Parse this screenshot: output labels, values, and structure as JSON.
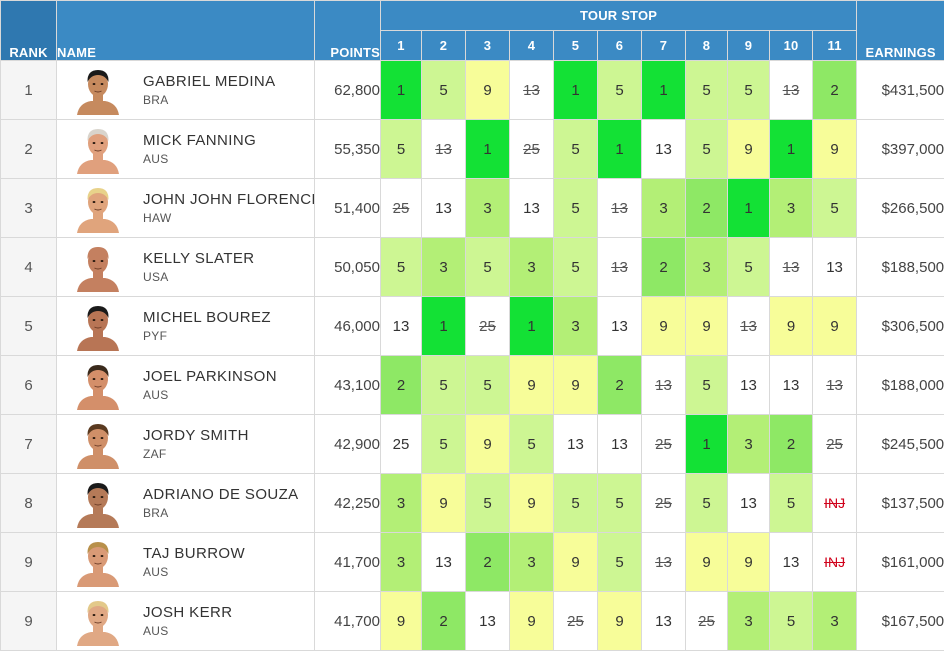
{
  "headers": {
    "rank": "RANK",
    "name": "NAME",
    "points": "POINTS",
    "tour_stop": "TOUR STOP",
    "earnings": "EARNINGS",
    "stops": [
      "1",
      "2",
      "3",
      "4",
      "5",
      "6",
      "7",
      "8",
      "9",
      "10",
      "11"
    ]
  },
  "colors": {
    "header_bg": "#3b8ac4",
    "result_1": "#13e135",
    "result_2": "#8ee865",
    "result_3": "#b3ef76",
    "result_5": "#cdf693",
    "result_9": "#f7fd99",
    "injury_text": "#d0021b"
  },
  "rows": [
    {
      "rank": "1",
      "name": "GABRIEL MEDINA",
      "country": "BRA",
      "points": "62,800",
      "earnings": "$431,500",
      "skin": "#c68a5e",
      "hair": "#1a1a1a",
      "results": [
        {
          "v": "1",
          "c": "c1"
        },
        {
          "v": "5",
          "c": "c5"
        },
        {
          "v": "9",
          "c": "c9"
        },
        {
          "v": "13",
          "c": "cw",
          "s": true
        },
        {
          "v": "1",
          "c": "c1"
        },
        {
          "v": "5",
          "c": "c5"
        },
        {
          "v": "1",
          "c": "c1"
        },
        {
          "v": "5",
          "c": "c5"
        },
        {
          "v": "5",
          "c": "c5"
        },
        {
          "v": "13",
          "c": "cw",
          "s": true
        },
        {
          "v": "2",
          "c": "c2"
        }
      ]
    },
    {
      "rank": "2",
      "name": "MICK FANNING",
      "country": "AUS",
      "points": "55,350",
      "earnings": "$397,000",
      "skin": "#e0a07d",
      "hair": "#d9d4cc",
      "results": [
        {
          "v": "5",
          "c": "c5"
        },
        {
          "v": "13",
          "c": "cw",
          "s": true
        },
        {
          "v": "1",
          "c": "c1"
        },
        {
          "v": "25",
          "c": "cw",
          "s": true
        },
        {
          "v": "5",
          "c": "c5"
        },
        {
          "v": "1",
          "c": "c1"
        },
        {
          "v": "13",
          "c": "cw"
        },
        {
          "v": "5",
          "c": "c5"
        },
        {
          "v": "9",
          "c": "c9"
        },
        {
          "v": "1",
          "c": "c1"
        },
        {
          "v": "9",
          "c": "c9"
        }
      ]
    },
    {
      "rank": "3",
      "name": "JOHN JOHN FLORENCE",
      "country": "HAW",
      "points": "51,400",
      "earnings": "$266,500",
      "skin": "#e0a47c",
      "hair": "#e8d28a",
      "results": [
        {
          "v": "25",
          "c": "cw",
          "s": true
        },
        {
          "v": "13",
          "c": "cw"
        },
        {
          "v": "3",
          "c": "c3"
        },
        {
          "v": "13",
          "c": "cw"
        },
        {
          "v": "5",
          "c": "c5"
        },
        {
          "v": "13",
          "c": "cw",
          "s": true
        },
        {
          "v": "3",
          "c": "c3"
        },
        {
          "v": "2",
          "c": "c2"
        },
        {
          "v": "1",
          "c": "c1"
        },
        {
          "v": "3",
          "c": "c3"
        },
        {
          "v": "5",
          "c": "c5"
        }
      ]
    },
    {
      "rank": "4",
      "name": "KELLY SLATER",
      "country": "USA",
      "points": "50,050",
      "earnings": "$188,500",
      "skin": "#c48060",
      "hair": "#c48060",
      "results": [
        {
          "v": "5",
          "c": "c5"
        },
        {
          "v": "3",
          "c": "c3"
        },
        {
          "v": "5",
          "c": "c5"
        },
        {
          "v": "3",
          "c": "c3"
        },
        {
          "v": "5",
          "c": "c5"
        },
        {
          "v": "13",
          "c": "cw",
          "s": true
        },
        {
          "v": "2",
          "c": "c2"
        },
        {
          "v": "3",
          "c": "c3"
        },
        {
          "v": "5",
          "c": "c5"
        },
        {
          "v": "13",
          "c": "cw",
          "s": true
        },
        {
          "v": "13",
          "c": "cw"
        }
      ]
    },
    {
      "rank": "5",
      "name": "MICHEL BOUREZ",
      "country": "PYF",
      "points": "46,000",
      "earnings": "$306,500",
      "skin": "#b87555",
      "hair": "#1a1a1a",
      "results": [
        {
          "v": "13",
          "c": "cw"
        },
        {
          "v": "1",
          "c": "c1"
        },
        {
          "v": "25",
          "c": "cw",
          "s": true
        },
        {
          "v": "1",
          "c": "c1"
        },
        {
          "v": "3",
          "c": "c3"
        },
        {
          "v": "13",
          "c": "cw"
        },
        {
          "v": "9",
          "c": "c9"
        },
        {
          "v": "9",
          "c": "c9"
        },
        {
          "v": "13",
          "c": "cw",
          "s": true
        },
        {
          "v": "9",
          "c": "c9"
        },
        {
          "v": "9",
          "c": "c9"
        }
      ]
    },
    {
      "rank": "6",
      "name": "JOEL PARKINSON",
      "country": "AUS",
      "points": "43,100",
      "earnings": "$188,000",
      "skin": "#d48f6a",
      "hair": "#3a2a1c",
      "results": [
        {
          "v": "2",
          "c": "c2"
        },
        {
          "v": "5",
          "c": "c5"
        },
        {
          "v": "5",
          "c": "c5"
        },
        {
          "v": "9",
          "c": "c9"
        },
        {
          "v": "9",
          "c": "c9"
        },
        {
          "v": "2",
          "c": "c2"
        },
        {
          "v": "13",
          "c": "cw",
          "s": true
        },
        {
          "v": "5",
          "c": "c5"
        },
        {
          "v": "13",
          "c": "cw"
        },
        {
          "v": "13",
          "c": "cw"
        },
        {
          "v": "13",
          "c": "cw",
          "s": true
        }
      ]
    },
    {
      "rank": "7",
      "name": "JORDY SMITH",
      "country": "ZAF",
      "points": "42,900",
      "earnings": "$245,500",
      "skin": "#cf8f68",
      "hair": "#5a3a20",
      "results": [
        {
          "v": "25",
          "c": "cw"
        },
        {
          "v": "5",
          "c": "c5"
        },
        {
          "v": "9",
          "c": "c9"
        },
        {
          "v": "5",
          "c": "c5"
        },
        {
          "v": "13",
          "c": "cw"
        },
        {
          "v": "13",
          "c": "cw"
        },
        {
          "v": "25",
          "c": "cw",
          "s": true
        },
        {
          "v": "1",
          "c": "c1"
        },
        {
          "v": "3",
          "c": "c3"
        },
        {
          "v": "2",
          "c": "c2"
        },
        {
          "v": "25",
          "c": "cw",
          "s": true
        }
      ]
    },
    {
      "rank": "8",
      "name": "ADRIANO DE SOUZA",
      "country": "BRA",
      "points": "42,250",
      "earnings": "$137,500",
      "skin": "#b57a58",
      "hair": "#1a1a1a",
      "results": [
        {
          "v": "3",
          "c": "c3"
        },
        {
          "v": "9",
          "c": "c9"
        },
        {
          "v": "5",
          "c": "c5"
        },
        {
          "v": "9",
          "c": "c9"
        },
        {
          "v": "5",
          "c": "c5"
        },
        {
          "v": "5",
          "c": "c5"
        },
        {
          "v": "25",
          "c": "cw",
          "s": true
        },
        {
          "v": "5",
          "c": "c5"
        },
        {
          "v": "13",
          "c": "cw"
        },
        {
          "v": "5",
          "c": "c5"
        },
        {
          "v": "INJ",
          "c": "cw",
          "i": true
        }
      ]
    },
    {
      "rank": "9",
      "name": "TAJ BURROW",
      "country": "AUS",
      "points": "41,700",
      "earnings": "$161,000",
      "skin": "#d99a76",
      "hair": "#b8904a",
      "results": [
        {
          "v": "3",
          "c": "c3"
        },
        {
          "v": "13",
          "c": "cw"
        },
        {
          "v": "2",
          "c": "c2"
        },
        {
          "v": "3",
          "c": "c3"
        },
        {
          "v": "9",
          "c": "c9"
        },
        {
          "v": "5",
          "c": "c5"
        },
        {
          "v": "13",
          "c": "cw",
          "s": true
        },
        {
          "v": "9",
          "c": "c9"
        },
        {
          "v": "9",
          "c": "c9"
        },
        {
          "v": "13",
          "c": "cw"
        },
        {
          "v": "INJ",
          "c": "cw",
          "i": true
        }
      ]
    },
    {
      "rank": "9",
      "name": "JOSH KERR",
      "country": "AUS",
      "points": "41,700",
      "earnings": "$167,500",
      "skin": "#e0a884",
      "hair": "#e3c98a",
      "results": [
        {
          "v": "9",
          "c": "c9"
        },
        {
          "v": "2",
          "c": "c2"
        },
        {
          "v": "13",
          "c": "cw"
        },
        {
          "v": "9",
          "c": "c9"
        },
        {
          "v": "25",
          "c": "cw",
          "s": true
        },
        {
          "v": "9",
          "c": "c9"
        },
        {
          "v": "13",
          "c": "cw"
        },
        {
          "v": "25",
          "c": "cw",
          "s": true
        },
        {
          "v": "3",
          "c": "c3"
        },
        {
          "v": "5",
          "c": "c5"
        },
        {
          "v": "3",
          "c": "c3"
        }
      ]
    }
  ]
}
